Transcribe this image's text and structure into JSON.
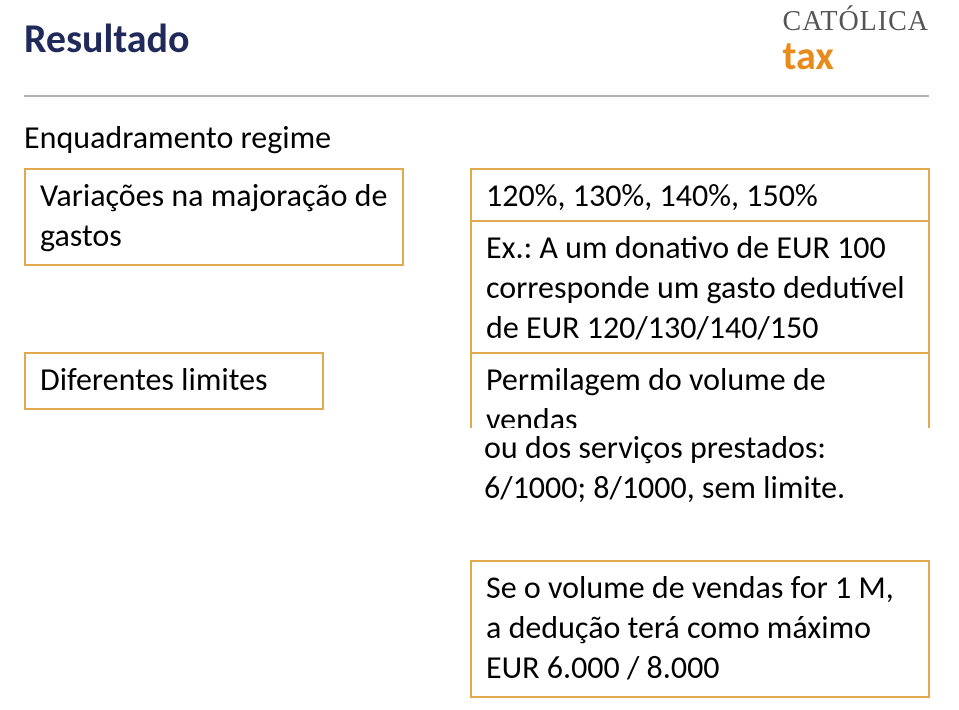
{
  "title": "Resultado",
  "logo": {
    "top": "CATÓLICA",
    "bottom": "tax"
  },
  "subheading": "Enquadramento regime",
  "left": {
    "box1": "Variações na majoração de gastos",
    "box2": "Diferentes limites"
  },
  "right": {
    "box1": "120%, 130%, 140%, 150%",
    "box2": "Ex.: A um donativo de EUR 100 corresponde um gasto dedutível de EUR 120/130/140/150",
    "box3": "Permilagem do volume de vendas",
    "box4_prefix": "ou dos serviços prestados: ",
    "box4_em": "6/1000; 8/1000, sem limite.",
    "box5": "Se o volume de vendas for 1 M, a dedução terá como máximo EUR 6.000 / 8.000"
  },
  "colors": {
    "title": "#1f2a5a",
    "box_border": "#e2a94e",
    "logo_orange": "#e88b1a",
    "divider": "#b0b0b0"
  }
}
